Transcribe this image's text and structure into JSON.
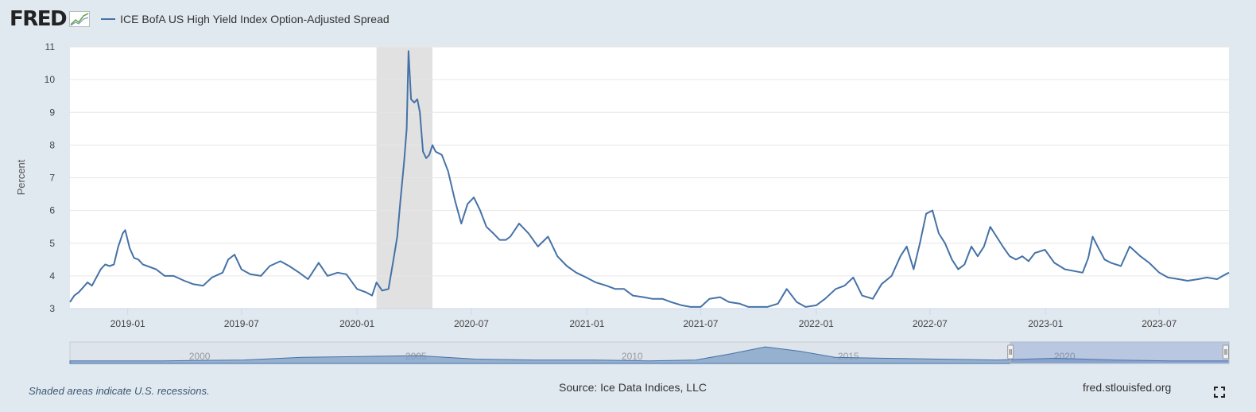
{
  "header": {
    "logo_text": "FRED",
    "legend_label": "ICE BofA US High Yield Index Option-Adjusted Spread",
    "series_color": "#4572a7",
    "recession_color": "#e1e1e1"
  },
  "chart_data": {
    "type": "line",
    "title": "",
    "xlabel": "",
    "ylabel": "Percent",
    "ylim": [
      3,
      11
    ],
    "y_ticks": [
      3,
      4,
      5,
      6,
      7,
      8,
      9,
      10,
      11
    ],
    "xlim": [
      "2018-10-01",
      "2023-10-20"
    ],
    "x_ticks": [
      "2019-01",
      "2019-07",
      "2020-01",
      "2020-07",
      "2021-01",
      "2021-07",
      "2022-01",
      "2022-07",
      "2023-01",
      "2023-07"
    ],
    "grid": true,
    "legend": "top-left",
    "recessions": [
      [
        "2020-02-01",
        "2020-04-30"
      ]
    ],
    "series": [
      {
        "name": "ICE BofA US High Yield Index Option-Adjusted Spread",
        "color": "#4572a7",
        "x": [
          "2018-10-01",
          "2018-10-08",
          "2018-10-15",
          "2018-10-22",
          "2018-10-29",
          "2018-11-05",
          "2018-11-12",
          "2018-11-19",
          "2018-11-26",
          "2018-12-03",
          "2018-12-10",
          "2018-12-17",
          "2018-12-24",
          "2018-12-28",
          "2019-01-04",
          "2019-01-11",
          "2019-01-18",
          "2019-01-25",
          "2019-02-01",
          "2019-02-15",
          "2019-03-01",
          "2019-03-15",
          "2019-04-01",
          "2019-04-15",
          "2019-05-01",
          "2019-05-15",
          "2019-06-01",
          "2019-06-10",
          "2019-06-20",
          "2019-07-01",
          "2019-07-15",
          "2019-08-01",
          "2019-08-15",
          "2019-09-01",
          "2019-09-15",
          "2019-10-01",
          "2019-10-15",
          "2019-11-01",
          "2019-11-15",
          "2019-12-01",
          "2019-12-15",
          "2020-01-01",
          "2020-01-15",
          "2020-01-25",
          "2020-02-01",
          "2020-02-10",
          "2020-02-20",
          "2020-02-28",
          "2020-03-05",
          "2020-03-10",
          "2020-03-16",
          "2020-03-20",
          "2020-03-23",
          "2020-03-27",
          "2020-04-01",
          "2020-04-06",
          "2020-04-10",
          "2020-04-15",
          "2020-04-20",
          "2020-04-25",
          "2020-04-30",
          "2020-05-05",
          "2020-05-15",
          "2020-05-25",
          "2020-06-05",
          "2020-06-15",
          "2020-06-25",
          "2020-07-05",
          "2020-07-15",
          "2020-07-25",
          "2020-08-05",
          "2020-08-15",
          "2020-08-25",
          "2020-09-01",
          "2020-09-15",
          "2020-09-30",
          "2020-10-15",
          "2020-10-31",
          "2020-11-15",
          "2020-11-30",
          "2020-12-15",
          "2020-12-31",
          "2021-01-15",
          "2021-02-01",
          "2021-02-15",
          "2021-03-01",
          "2021-03-15",
          "2021-04-01",
          "2021-04-15",
          "2021-05-01",
          "2021-05-15",
          "2021-06-01",
          "2021-06-15",
          "2021-07-01",
          "2021-07-15",
          "2021-08-01",
          "2021-08-15",
          "2021-09-01",
          "2021-09-15",
          "2021-10-01",
          "2021-10-15",
          "2021-11-01",
          "2021-11-15",
          "2021-12-01",
          "2021-12-15",
          "2022-01-01",
          "2022-01-15",
          "2022-02-01",
          "2022-02-15",
          "2022-03-01",
          "2022-03-15",
          "2022-04-01",
          "2022-04-15",
          "2022-05-01",
          "2022-05-15",
          "2022-05-25",
          "2022-06-05",
          "2022-06-15",
          "2022-06-25",
          "2022-07-05",
          "2022-07-15",
          "2022-07-25",
          "2022-08-05",
          "2022-08-15",
          "2022-08-25",
          "2022-09-05",
          "2022-09-15",
          "2022-09-25",
          "2022-10-05",
          "2022-10-15",
          "2022-10-25",
          "2022-11-05",
          "2022-11-15",
          "2022-11-25",
          "2022-12-05",
          "2022-12-15",
          "2022-12-31",
          "2023-01-15",
          "2023-02-01",
          "2023-02-15",
          "2023-03-01",
          "2023-03-10",
          "2023-03-17",
          "2023-03-25",
          "2023-04-05",
          "2023-04-15",
          "2023-05-01",
          "2023-05-15",
          "2023-06-01",
          "2023-06-15",
          "2023-07-01",
          "2023-07-15",
          "2023-08-01",
          "2023-08-15",
          "2023-09-01",
          "2023-09-15",
          "2023-10-01",
          "2023-10-15",
          "2023-10-20"
        ],
        "values": [
          3.2,
          3.4,
          3.5,
          3.65,
          3.8,
          3.7,
          3.95,
          4.2,
          4.35,
          4.3,
          4.35,
          4.9,
          5.3,
          5.4,
          4.85,
          4.55,
          4.5,
          4.35,
          4.3,
          4.2,
          4.0,
          4.0,
          3.85,
          3.75,
          3.7,
          3.95,
          4.1,
          4.5,
          4.65,
          4.2,
          4.05,
          4.0,
          4.3,
          4.45,
          4.3,
          4.1,
          3.9,
          4.4,
          4.0,
          4.1,
          4.05,
          3.6,
          3.5,
          3.4,
          3.8,
          3.55,
          3.6,
          4.5,
          5.2,
          6.3,
          7.5,
          8.5,
          10.87,
          9.4,
          9.3,
          9.4,
          9.0,
          7.8,
          7.6,
          7.7,
          8.0,
          7.8,
          7.7,
          7.2,
          6.3,
          5.6,
          6.2,
          6.4,
          6.0,
          5.5,
          5.3,
          5.1,
          5.1,
          5.2,
          5.6,
          5.3,
          4.9,
          5.2,
          4.6,
          4.3,
          4.1,
          3.95,
          3.8,
          3.7,
          3.6,
          3.6,
          3.4,
          3.35,
          3.3,
          3.3,
          3.2,
          3.1,
          3.05,
          3.05,
          3.3,
          3.35,
          3.2,
          3.15,
          3.05,
          3.05,
          3.05,
          3.15,
          3.6,
          3.2,
          3.05,
          3.1,
          3.3,
          3.6,
          3.7,
          3.95,
          3.4,
          3.3,
          3.75,
          4.0,
          4.6,
          4.9,
          4.2,
          5.0,
          5.9,
          6.0,
          5.3,
          5.0,
          4.5,
          4.2,
          4.35,
          4.9,
          4.6,
          4.9,
          5.5,
          5.2,
          4.9,
          4.6,
          4.5,
          4.6,
          4.45,
          4.7,
          4.8,
          4.4,
          4.2,
          4.15,
          4.1,
          4.55,
          5.2,
          4.9,
          4.5,
          4.4,
          4.3,
          4.9,
          4.6,
          4.4,
          4.1,
          3.95,
          3.9,
          3.85,
          3.9,
          3.95,
          3.9,
          4.05,
          4.1
        ]
      }
    ],
    "navigator_ticks": [
      "2000",
      "2005",
      "2010",
      "2015",
      "2020"
    ],
    "navigator_range": [
      "1997-01-01",
      "2023-10-20"
    ]
  },
  "footer": {
    "note": "Shaded areas indicate U.S. recessions.",
    "source": "Source: Ice Data Indices, LLC",
    "site": "fred.stlouisfed.org"
  }
}
